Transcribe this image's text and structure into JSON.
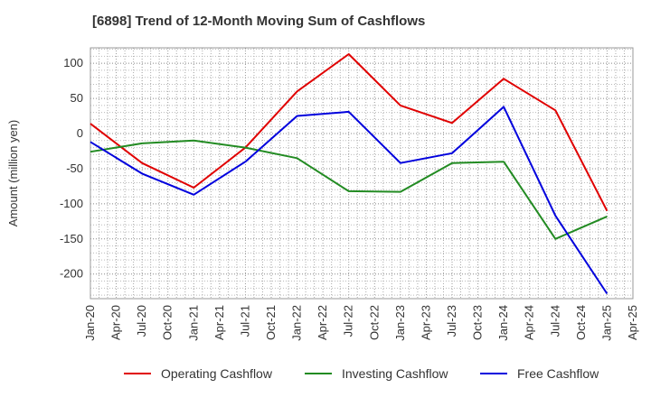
{
  "chart_data": {
    "type": "line",
    "title": "[6898]  Trend of 12-Month Moving Sum of Cashflows",
    "xlabel": "",
    "ylabel": "Amount (million yen)",
    "ylim": [
      -235,
      122
    ],
    "yticks": [
      100,
      50,
      0,
      -50,
      -100,
      -150,
      -200
    ],
    "categories": [
      "Jan-20",
      "Apr-20",
      "Jul-20",
      "Oct-20",
      "Jan-21",
      "Apr-21",
      "Jul-21",
      "Oct-21",
      "Jan-22",
      "Apr-22",
      "Jul-22",
      "Oct-22",
      "Jan-23",
      "Apr-23",
      "Jul-23",
      "Oct-23",
      "Jan-24",
      "Apr-24",
      "Jul-24",
      "Oct-24",
      "Jan-25",
      "Apr-25"
    ],
    "x": [
      "Jan-20",
      "Jul-20",
      "Jan-21",
      "Jul-21",
      "Jan-22",
      "Jul-22",
      "Jan-23",
      "Jul-23",
      "Jan-24",
      "Jul-24",
      "Jan-25"
    ],
    "grid": true,
    "legend_position": "bottom",
    "series": [
      {
        "name": "Operating Cashflow",
        "color": "#e00000",
        "values": [
          14,
          -42,
          -77,
          -20,
          60,
          113,
          40,
          15,
          78,
          33,
          -110
        ]
      },
      {
        "name": "Investing Cashflow",
        "color": "#228B22",
        "values": [
          -26,
          -14,
          -10,
          -20,
          -35,
          -82,
          -83,
          -42,
          -40,
          -150,
          -118
        ]
      },
      {
        "name": "Free Cashflow",
        "color": "#0000dd",
        "values": [
          -12,
          -57,
          -87,
          -40,
          25,
          31,
          -42,
          -28,
          38,
          -117,
          -228
        ]
      }
    ]
  }
}
